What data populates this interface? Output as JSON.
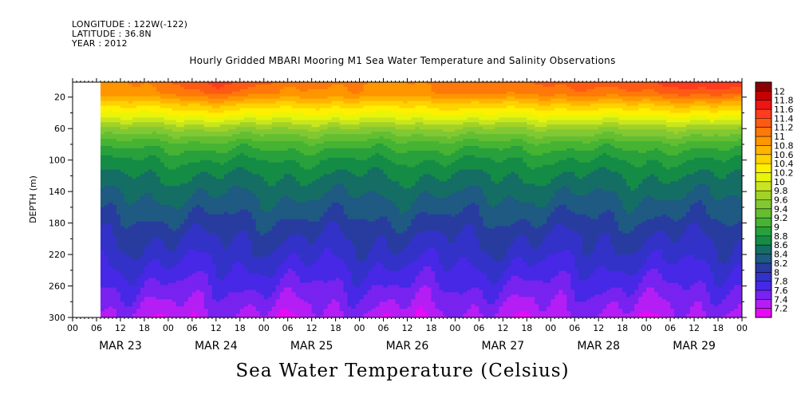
{
  "header": {
    "longitude": "LONGITUDE : 122W(-122)",
    "latitude": "LATITUDE : 36.8N",
    "year": "YEAR : 2012",
    "title": "Hourly Gridded MBARI Mooring M1 Sea Water Temperature and Salinity Observations"
  },
  "footer": {
    "variable_title": "Sea Water Temperature (Celsius)"
  },
  "chart_data": {
    "type": "heatmap",
    "title": "Hourly Gridded MBARI Mooring M1 Sea Water Temperature and Salinity Observations",
    "xlabel": "",
    "ylabel": "DEPTH (m)",
    "x_hours": [
      "00",
      "06",
      "12",
      "18",
      "00",
      "06",
      "12",
      "18",
      "00",
      "06",
      "12",
      "18",
      "00",
      "06",
      "12",
      "18",
      "00",
      "06",
      "12",
      "18",
      "00",
      "06",
      "12",
      "18",
      "00",
      "06",
      "12",
      "18",
      "00"
    ],
    "x_days": [
      "MAR 23",
      "MAR 24",
      "MAR 25",
      "MAR 26",
      "MAR 27",
      "MAR 28",
      "MAR 29"
    ],
    "xlim_hours": [
      0,
      168
    ],
    "data_start_hour": 7,
    "y_ticks": [
      20,
      60,
      100,
      140,
      180,
      220,
      260,
      300
    ],
    "ylim": [
      300,
      1
    ],
    "y_inverted": true,
    "colorbar": {
      "labels": [
        "12",
        "11.8",
        "11.6",
        "11.4",
        "11.2",
        "11",
        "10.8",
        "10.6",
        "10.4",
        "10.2",
        "10",
        "9.8",
        "9.6",
        "9.4",
        "9.2",
        "9",
        "8.8",
        "8.6",
        "8.4",
        "8.2",
        "8",
        "7.8",
        "7.6",
        "7.4",
        "7.2"
      ],
      "colors": [
        "#8b0000",
        "#c80000",
        "#f01414",
        "#ff3c1e",
        "#ff5a14",
        "#ff780a",
        "#ff9600",
        "#ffb400",
        "#ffd200",
        "#fff000",
        "#e6f50a",
        "#c8e61e",
        "#a0d228",
        "#82c832",
        "#64be32",
        "#46b432",
        "#28a03c",
        "#148c46",
        "#146e64",
        "#1e5a82",
        "#283ca0",
        "#3232c8",
        "#4628e6",
        "#7823f0",
        "#b41ef5",
        "#e60af5"
      ]
    },
    "depth_profile": [
      {
        "depth": 1,
        "temp": 11.1
      },
      {
        "depth": 15,
        "temp": 11.0
      },
      {
        "depth": 30,
        "temp": 10.5
      },
      {
        "depth": 45,
        "temp": 10.1
      },
      {
        "depth": 60,
        "temp": 9.6
      },
      {
        "depth": 80,
        "temp": 9.1
      },
      {
        "depth": 100,
        "temp": 8.8
      },
      {
        "depth": 120,
        "temp": 8.6
      },
      {
        "depth": 140,
        "temp": 8.45
      },
      {
        "depth": 160,
        "temp": 8.3
      },
      {
        "depth": 180,
        "temp": 8.15
      },
      {
        "depth": 200,
        "temp": 8.0
      },
      {
        "depth": 220,
        "temp": 7.9
      },
      {
        "depth": 240,
        "temp": 7.75
      },
      {
        "depth": 260,
        "temp": 7.6
      },
      {
        "depth": 280,
        "temp": 7.45
      },
      {
        "depth": 300,
        "temp": 7.3
      }
    ],
    "surface_temp_by_day": [
      {
        "day": "MAR 23",
        "temp": 10.9
      },
      {
        "day": "MAR 24",
        "temp": 11.5
      },
      {
        "day": "MAR 25",
        "temp": 11.0
      },
      {
        "day": "MAR 26",
        "temp": 11.0
      },
      {
        "day": "MAR 27",
        "temp": 11.2
      },
      {
        "day": "MAR 28",
        "temp": 11.3
      },
      {
        "day": "MAR 29",
        "temp": 11.6
      }
    ]
  }
}
